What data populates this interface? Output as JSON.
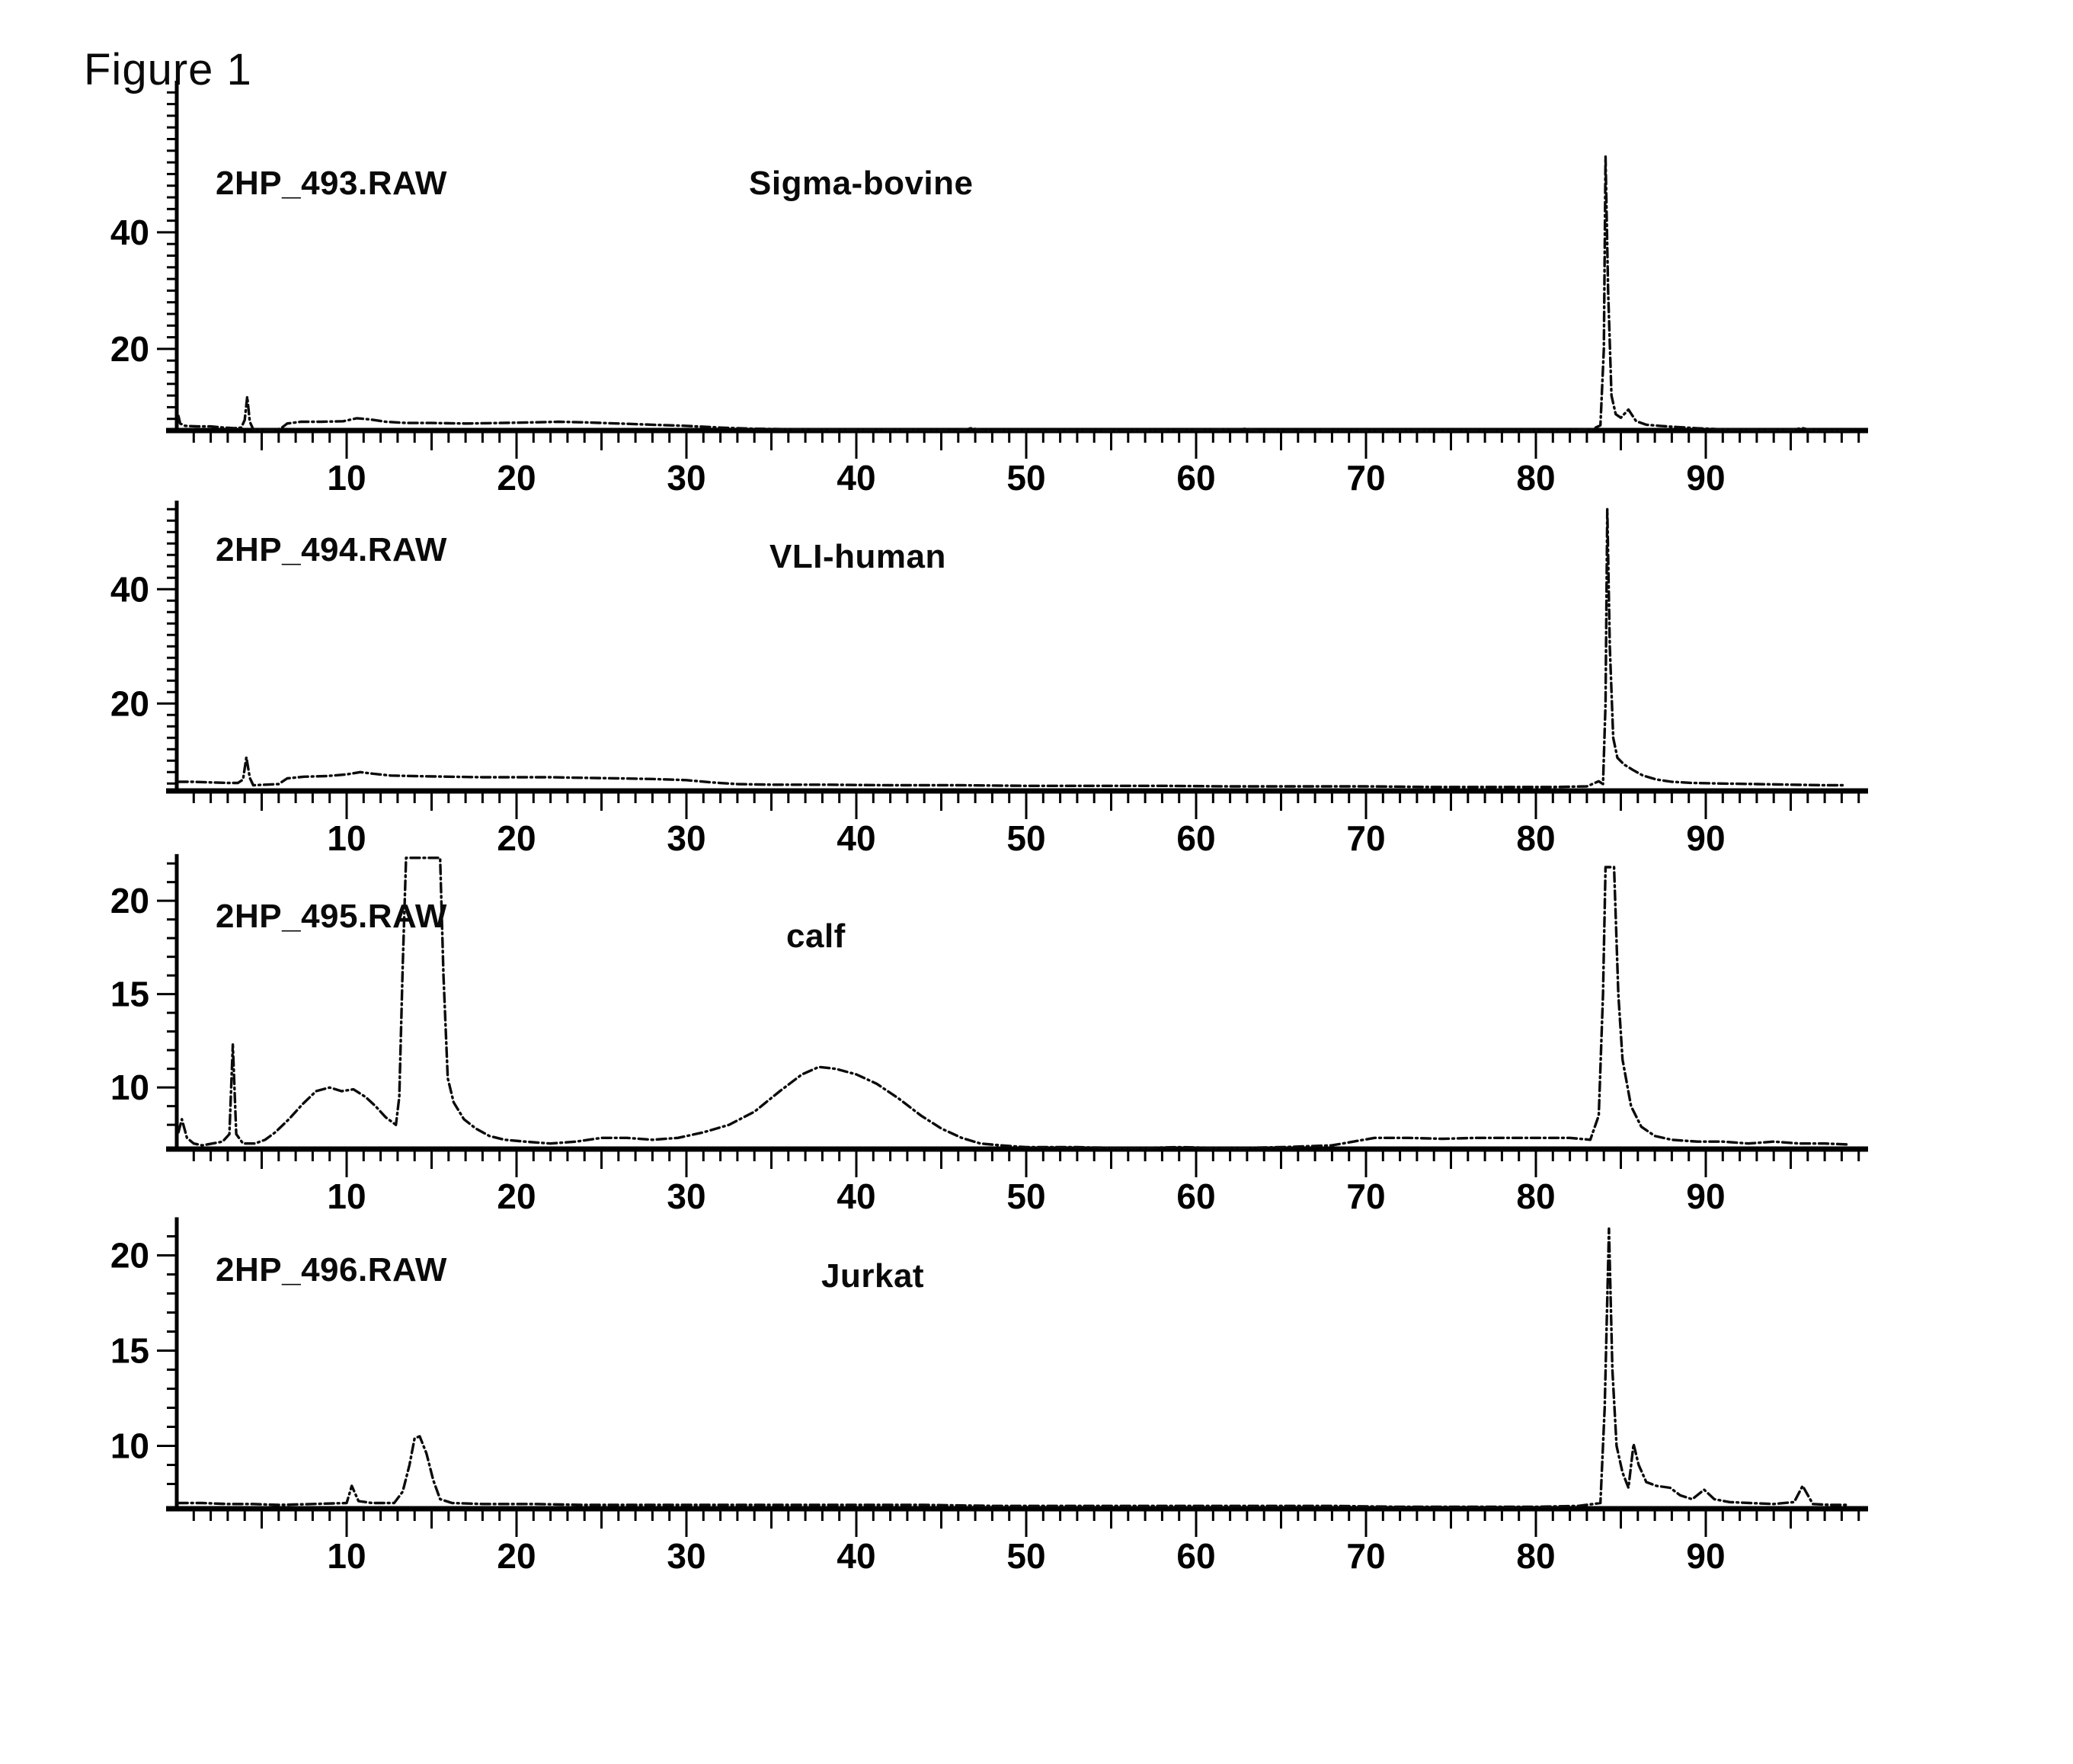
{
  "figure_title": "Figure 1",
  "chart_data": [
    {
      "type": "line",
      "title": "2HP_493.RAW",
      "sample_label": "Sigma-bovine",
      "xlim": [
        0,
        99.5
      ],
      "ylim": [
        6,
        66
      ],
      "x_ticks": [
        10,
        20,
        30,
        40,
        50,
        60,
        70,
        80,
        90
      ],
      "y_ticks": [
        20,
        40
      ],
      "y_minor_step": 2,
      "grid": false,
      "trace": [
        [
          0.1,
          8.5
        ],
        [
          0.2,
          7.2
        ],
        [
          0.5,
          6.8
        ],
        [
          1.2,
          6.7
        ],
        [
          2,
          6.7
        ],
        [
          2.8,
          6.5
        ],
        [
          3.4,
          6.4
        ],
        [
          3.8,
          6.5
        ],
        [
          4.0,
          7.8
        ],
        [
          4.15,
          11.8
        ],
        [
          4.3,
          7.5
        ],
        [
          4.5,
          6.2
        ],
        [
          5,
          6.1
        ],
        [
          5.6,
          6.1
        ],
        [
          6.1,
          6.3
        ],
        [
          6.5,
          7.2
        ],
        [
          7.3,
          7.5
        ],
        [
          8.5,
          7.5
        ],
        [
          9.8,
          7.6
        ],
        [
          10.6,
          8.1
        ],
        [
          11.4,
          7.9
        ],
        [
          12.3,
          7.5
        ],
        [
          13.5,
          7.3
        ],
        [
          15,
          7.3
        ],
        [
          17,
          7.2
        ],
        [
          19,
          7.3
        ],
        [
          21,
          7.4
        ],
        [
          22.5,
          7.5
        ],
        [
          24,
          7.4
        ],
        [
          26,
          7.2
        ],
        [
          28,
          7.0
        ],
        [
          30,
          6.8
        ],
        [
          32,
          6.5
        ],
        [
          34,
          6.3
        ],
        [
          37,
          6.2
        ],
        [
          40,
          6.1
        ],
        [
          43,
          6.1
        ],
        [
          46,
          6.0
        ],
        [
          46.8,
          6.4
        ],
        [
          47.4,
          6.0
        ],
        [
          50,
          6.0
        ],
        [
          54,
          6.0
        ],
        [
          58,
          6.0
        ],
        [
          62.4,
          6.2
        ],
        [
          63,
          6.3
        ],
        [
          63.6,
          6.0
        ],
        [
          67,
          6.0
        ],
        [
          71,
          6.0
        ],
        [
          75,
          6.0
        ],
        [
          79,
          6.0
        ],
        [
          82,
          6.0
        ],
        [
          83.3,
          6.2
        ],
        [
          83.8,
          6.9
        ],
        [
          84.0,
          20
        ],
        [
          84.1,
          53
        ],
        [
          84.25,
          30
        ],
        [
          84.45,
          12
        ],
        [
          84.7,
          8.8
        ],
        [
          85.0,
          8.2
        ],
        [
          85.45,
          9.6
        ],
        [
          85.9,
          7.6
        ],
        [
          86.5,
          7.0
        ],
        [
          87.3,
          6.8
        ],
        [
          88.3,
          6.6
        ],
        [
          89.4,
          6.4
        ],
        [
          91,
          6.2
        ],
        [
          93,
          6.1
        ],
        [
          95,
          6.1
        ],
        [
          95.7,
          6.4
        ],
        [
          96.3,
          6.0
        ],
        [
          97.6,
          6.0
        ],
        [
          98.6,
          6.0
        ]
      ]
    },
    {
      "type": "line",
      "title": "2HP_494.RAW",
      "sample_label": "VLI-human",
      "xlim": [
        0,
        99.5
      ],
      "ylim": [
        4.7,
        55.5
      ],
      "x_ticks": [
        10,
        20,
        30,
        40,
        50,
        60,
        70,
        80,
        90
      ],
      "y_ticks": [
        20,
        40
      ],
      "y_minor_step": 2,
      "grid": false,
      "trace": [
        [
          0.1,
          6.3
        ],
        [
          1,
          6.3
        ],
        [
          2,
          6.2
        ],
        [
          3,
          6.1
        ],
        [
          3.6,
          6.1
        ],
        [
          3.9,
          6.7
        ],
        [
          4.1,
          10.6
        ],
        [
          4.3,
          7.0
        ],
        [
          4.5,
          5.7
        ],
        [
          5.2,
          5.8
        ],
        [
          6.0,
          5.9
        ],
        [
          6.5,
          6.9
        ],
        [
          7.5,
          7.2
        ],
        [
          8.8,
          7.3
        ],
        [
          10,
          7.6
        ],
        [
          10.8,
          8.0
        ],
        [
          11.6,
          7.7
        ],
        [
          12.6,
          7.4
        ],
        [
          14,
          7.3
        ],
        [
          16,
          7.2
        ],
        [
          18,
          7.1
        ],
        [
          20,
          7.1
        ],
        [
          22,
          7.1
        ],
        [
          24,
          7.0
        ],
        [
          26,
          6.9
        ],
        [
          28,
          6.8
        ],
        [
          30,
          6.6
        ],
        [
          31.5,
          6.2
        ],
        [
          33,
          5.9
        ],
        [
          35,
          5.8
        ],
        [
          38,
          5.8
        ],
        [
          42,
          5.7
        ],
        [
          46,
          5.7
        ],
        [
          50,
          5.6
        ],
        [
          54,
          5.6
        ],
        [
          58,
          5.6
        ],
        [
          62,
          5.5
        ],
        [
          66,
          5.5
        ],
        [
          70,
          5.5
        ],
        [
          74,
          5.4
        ],
        [
          78,
          5.4
        ],
        [
          81,
          5.4
        ],
        [
          83,
          5.5
        ],
        [
          83.7,
          6.4
        ],
        [
          83.95,
          5.9
        ],
        [
          84.1,
          20
        ],
        [
          84.2,
          54
        ],
        [
          84.35,
          30
        ],
        [
          84.55,
          14
        ],
        [
          84.8,
          10.5
        ],
        [
          85.2,
          9.3
        ],
        [
          85.7,
          8.4
        ],
        [
          86.3,
          7.4
        ],
        [
          87.1,
          6.7
        ],
        [
          88,
          6.3
        ],
        [
          89.2,
          6.1
        ],
        [
          91,
          6.0
        ],
        [
          93,
          5.9
        ],
        [
          95,
          5.8
        ],
        [
          97,
          5.7
        ],
        [
          98.2,
          5.7
        ]
      ]
    },
    {
      "type": "line",
      "title": "2HP_495.RAW",
      "sample_label": "calf",
      "xlim": [
        0,
        99.5
      ],
      "ylim": [
        6.7,
        22.5
      ],
      "x_ticks": [
        10,
        20,
        30,
        40,
        50,
        60,
        70,
        80,
        90
      ],
      "y_ticks": [
        10,
        15,
        20
      ],
      "y_minor_step": 1,
      "grid": false,
      "trace": [
        [
          0.1,
          7.6
        ],
        [
          0.3,
          8.3
        ],
        [
          0.6,
          7.3
        ],
        [
          1.0,
          7.0
        ],
        [
          1.5,
          6.9
        ],
        [
          2.1,
          7.0
        ],
        [
          2.7,
          7.1
        ],
        [
          3.1,
          7.5
        ],
        [
          3.3,
          12.3
        ],
        [
          3.5,
          7.5
        ],
        [
          3.9,
          7.0
        ],
        [
          4.6,
          7.0
        ],
        [
          5.2,
          7.2
        ],
        [
          5.8,
          7.6
        ],
        [
          6.6,
          8.3
        ],
        [
          7.4,
          9.1
        ],
        [
          8.2,
          9.8
        ],
        [
          9.0,
          10.0
        ],
        [
          9.7,
          9.8
        ],
        [
          10.4,
          9.9
        ],
        [
          11.1,
          9.5
        ],
        [
          11.7,
          9.0
        ],
        [
          12.3,
          8.4
        ],
        [
          12.9,
          8.0
        ],
        [
          13.1,
          9.5
        ],
        [
          13.3,
          16.5
        ],
        [
          13.5,
          22.3
        ],
        [
          15.5,
          22.3
        ],
        [
          15.7,
          16
        ],
        [
          15.95,
          10.5
        ],
        [
          16.3,
          9.2
        ],
        [
          16.9,
          8.3
        ],
        [
          17.6,
          7.8
        ],
        [
          18.4,
          7.4
        ],
        [
          19.3,
          7.2
        ],
        [
          20.5,
          7.1
        ],
        [
          22,
          7.0
        ],
        [
          23.5,
          7.1
        ],
        [
          25,
          7.3
        ],
        [
          26.5,
          7.3
        ],
        [
          28,
          7.2
        ],
        [
          29.5,
          7.3
        ],
        [
          31,
          7.6
        ],
        [
          32.5,
          8.0
        ],
        [
          34,
          8.7
        ],
        [
          35.5,
          9.8
        ],
        [
          36.8,
          10.7
        ],
        [
          37.8,
          11.1
        ],
        [
          38.8,
          11.0
        ],
        [
          40,
          10.7
        ],
        [
          41.2,
          10.2
        ],
        [
          42.5,
          9.4
        ],
        [
          43.8,
          8.5
        ],
        [
          45,
          7.8
        ],
        [
          46.2,
          7.3
        ],
        [
          47.3,
          7.0
        ],
        [
          48.5,
          6.9
        ],
        [
          50,
          6.8
        ],
        [
          53,
          6.8
        ],
        [
          56,
          6.75
        ],
        [
          59,
          6.8
        ],
        [
          62,
          6.75
        ],
        [
          65,
          6.8
        ],
        [
          68,
          6.9
        ],
        [
          70.5,
          7.3
        ],
        [
          72.5,
          7.3
        ],
        [
          74.5,
          7.25
        ],
        [
          76.5,
          7.3
        ],
        [
          78.5,
          7.3
        ],
        [
          80.5,
          7.3
        ],
        [
          82,
          7.3
        ],
        [
          83.2,
          7.2
        ],
        [
          83.7,
          8.5
        ],
        [
          83.95,
          15
        ],
        [
          84.1,
          21.8
        ],
        [
          84.6,
          21.8
        ],
        [
          84.85,
          15
        ],
        [
          85.1,
          11.5
        ],
        [
          85.6,
          9.0
        ],
        [
          86.2,
          7.9
        ],
        [
          87,
          7.4
        ],
        [
          88,
          7.2
        ],
        [
          89.5,
          7.1
        ],
        [
          91,
          7.1
        ],
        [
          92.5,
          7.0
        ],
        [
          94,
          7.1
        ],
        [
          95.5,
          7.0
        ],
        [
          97,
          7.0
        ],
        [
          98.3,
          6.95
        ]
      ]
    },
    {
      "type": "line",
      "title": "2HP_496.RAW",
      "sample_label": "Jurkat",
      "xlim": [
        0,
        99.5
      ],
      "ylim": [
        6.7,
        22.0
      ],
      "x_ticks": [
        10,
        20,
        30,
        40,
        50,
        60,
        70,
        80,
        90
      ],
      "y_ticks": [
        10,
        15,
        20
      ],
      "y_minor_step": 1,
      "grid": false,
      "trace": [
        [
          0.1,
          7.0
        ],
        [
          1.5,
          7.0
        ],
        [
          3,
          6.95
        ],
        [
          4.5,
          6.95
        ],
        [
          6,
          6.9
        ],
        [
          8,
          6.95
        ],
        [
          10.0,
          7.0
        ],
        [
          10.3,
          7.9
        ],
        [
          10.7,
          7.1
        ],
        [
          11.5,
          7.0
        ],
        [
          12.8,
          7.0
        ],
        [
          13.3,
          7.6
        ],
        [
          13.7,
          9.0
        ],
        [
          14.0,
          10.4
        ],
        [
          14.3,
          10.5
        ],
        [
          14.7,
          9.6
        ],
        [
          15.1,
          8.2
        ],
        [
          15.5,
          7.2
        ],
        [
          16.2,
          7.0
        ],
        [
          18,
          6.95
        ],
        [
          21,
          6.95
        ],
        [
          24,
          6.9
        ],
        [
          28,
          6.9
        ],
        [
          32,
          6.9
        ],
        [
          36,
          6.9
        ],
        [
          40,
          6.9
        ],
        [
          44,
          6.9
        ],
        [
          48,
          6.85
        ],
        [
          52,
          6.85
        ],
        [
          56,
          6.85
        ],
        [
          60,
          6.85
        ],
        [
          64,
          6.85
        ],
        [
          68,
          6.85
        ],
        [
          72,
          6.8
        ],
        [
          76,
          6.8
        ],
        [
          80,
          6.8
        ],
        [
          82.5,
          6.85
        ],
        [
          83.8,
          7.0
        ],
        [
          84.05,
          12
        ],
        [
          84.3,
          21.4
        ],
        [
          84.5,
          14
        ],
        [
          84.75,
          10
        ],
        [
          85.1,
          8.6
        ],
        [
          85.45,
          7.8
        ],
        [
          85.75,
          10.1
        ],
        [
          86.05,
          9.0
        ],
        [
          86.5,
          8.1
        ],
        [
          87.1,
          7.9
        ],
        [
          87.9,
          7.8
        ],
        [
          88.5,
          7.4
        ],
        [
          89.2,
          7.2
        ],
        [
          89.9,
          7.7
        ],
        [
          90.5,
          7.2
        ],
        [
          91.4,
          7.05
        ],
        [
          92.6,
          7.0
        ],
        [
          94,
          6.95
        ],
        [
          95.2,
          7.05
        ],
        [
          95.7,
          7.9
        ],
        [
          96.3,
          6.95
        ],
        [
          97.4,
          6.9
        ],
        [
          98.3,
          6.9
        ]
      ]
    }
  ]
}
